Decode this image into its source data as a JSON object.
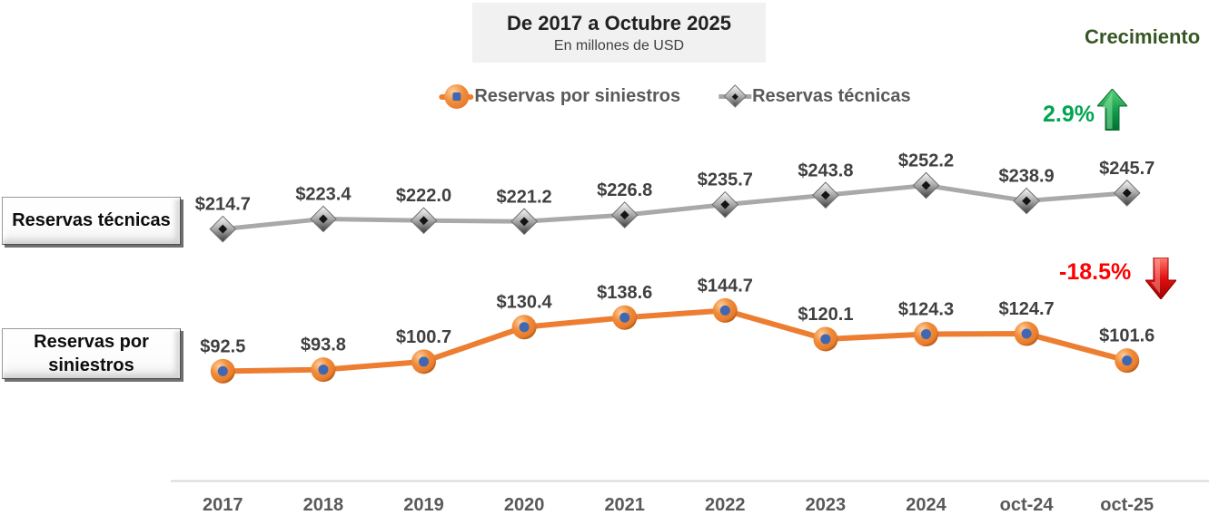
{
  "header": {
    "title": "De 2017 a Octubre 2025",
    "subtitle": "En millones de USD"
  },
  "growth": {
    "heading": "Crecimiento",
    "heading_color": "#375623",
    "up_value": "2.9%",
    "up_color": "#00A651",
    "down_value": "-18.5%",
    "down_color": "#FF0000"
  },
  "legend": {
    "items": [
      {
        "label": "Reservas por siniestros",
        "marker": "circle",
        "color": "#ED7D31"
      },
      {
        "label": "Reservas técnicas",
        "marker": "diamond",
        "color": "#A6A6A6"
      }
    ]
  },
  "row_labels": {
    "technical": "Reservas técnicas",
    "claims": "Reservas por siniestros"
  },
  "chart_data": {
    "type": "line",
    "title": "De 2017 a Octubre 2025",
    "subtitle": "En millones de USD",
    "categories": [
      "2017",
      "2018",
      "2019",
      "2020",
      "2021",
      "2022",
      "2023",
      "2024",
      "oct-24",
      "oct-25"
    ],
    "series": [
      {
        "name": "Reservas técnicas",
        "marker": "diamond",
        "color": "#A9A9A9",
        "marker_center_color": "#141414",
        "values": [
          214.7,
          223.4,
          222.0,
          221.2,
          226.8,
          235.7,
          243.8,
          252.2,
          238.9,
          245.7
        ],
        "growth": "2.9%"
      },
      {
        "name": "Reservas por siniestros",
        "marker": "circle",
        "color": "#ED7D31",
        "marker_center_color": "#3E68B4",
        "values": [
          92.5,
          93.8,
          100.7,
          130.4,
          138.6,
          144.7,
          120.1,
          124.3,
          124.7,
          101.6
        ],
        "growth": "-18.5%"
      }
    ],
    "value_prefix": "$",
    "value_decimals": 1,
    "label_color": "#404040",
    "axis_label_color": "#595959",
    "ylim": [
      0,
      280
    ],
    "grid": false,
    "legend_position": "top-center"
  }
}
